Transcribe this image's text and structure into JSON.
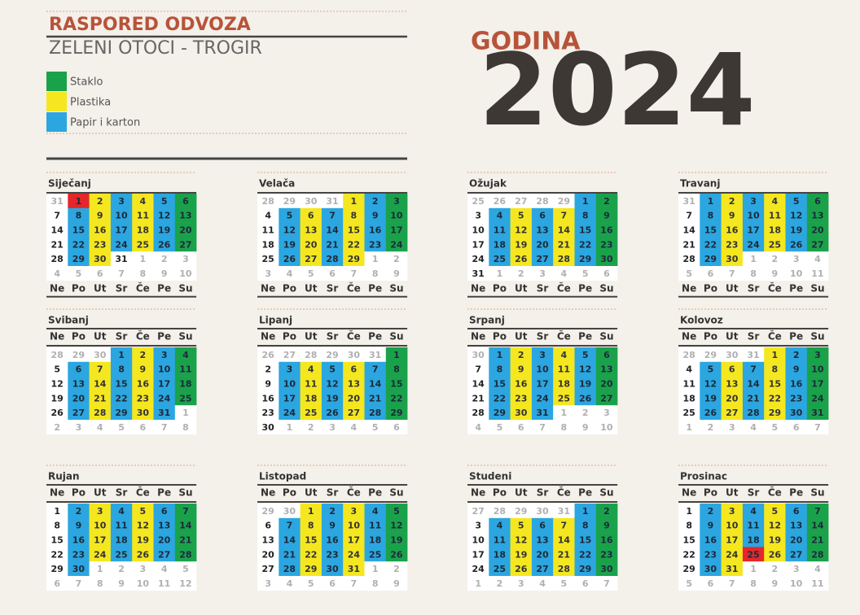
{
  "header": {
    "title": "RASPORED ODVOZA",
    "subtitle": "ZELENI OTOCI - TROGIR",
    "year_label": "GODINA",
    "year": "2024"
  },
  "legend": [
    {
      "label": "Staklo",
      "color": "#1aa24b"
    },
    {
      "label": "Plastika",
      "color": "#f5e71f"
    },
    {
      "label": "Papir i karton",
      "color": "#2ba6e0"
    }
  ],
  "palette": {
    "g": "#1aa24b",
    "y": "#f5e71f",
    "b": "#2ba6e0",
    "r": "#e5262a",
    "w": "#ffffff",
    "o": "#ffffff"
  },
  "weekdays": [
    "Ne",
    "Po",
    "Ut",
    "Sr",
    "Če",
    "Pe",
    "Su"
  ],
  "months": [
    {
      "name": "Siječanj",
      "weeks": [
        [
          31,
          1,
          2,
          3,
          4,
          5,
          6
        ],
        [
          7,
          8,
          9,
          10,
          11,
          12,
          13
        ],
        [
          14,
          15,
          16,
          17,
          18,
          19,
          20
        ],
        [
          21,
          22,
          23,
          24,
          25,
          26,
          27
        ],
        [
          28,
          29,
          30,
          31,
          1,
          2,
          3
        ],
        [
          4,
          5,
          6,
          7,
          8,
          9,
          10
        ]
      ],
      "colors": [
        "orybybg",
        "wbybybg",
        "wbybybg",
        "wbybybg",
        "wbywooo",
        "ooooooo"
      ]
    },
    {
      "name": "Velača",
      "weeks": [
        [
          28,
          29,
          30,
          31,
          1,
          2,
          3
        ],
        [
          4,
          5,
          6,
          7,
          8,
          9,
          10
        ],
        [
          11,
          12,
          13,
          14,
          15,
          16,
          17
        ],
        [
          18,
          19,
          20,
          21,
          22,
          23,
          24
        ],
        [
          25,
          26,
          27,
          28,
          29,
          1,
          2
        ],
        [
          3,
          4,
          5,
          6,
          7,
          8,
          9
        ]
      ],
      "colors": [
        "ooooybg",
        "wbybybg",
        "wbybybg",
        "wbybybg",
        "wbybyoo",
        "ooooooo"
      ]
    },
    {
      "name": "Ožujak",
      "weeks": [
        [
          25,
          26,
          27,
          28,
          29,
          1,
          2
        ],
        [
          3,
          4,
          5,
          6,
          7,
          8,
          9
        ],
        [
          10,
          11,
          12,
          13,
          14,
          15,
          16
        ],
        [
          17,
          18,
          19,
          20,
          21,
          22,
          23
        ],
        [
          24,
          25,
          26,
          27,
          28,
          29,
          30
        ],
        [
          31,
          1,
          2,
          3,
          4,
          5,
          6
        ]
      ],
      "colors": [
        "ooooobg",
        "wbybybg",
        "wbybybg",
        "wbybybg",
        "wbybybg",
        "woooooo"
      ]
    },
    {
      "name": "Travanj",
      "weeks": [
        [
          31,
          1,
          2,
          3,
          4,
          5,
          6
        ],
        [
          7,
          8,
          9,
          10,
          11,
          12,
          13
        ],
        [
          14,
          15,
          16,
          17,
          18,
          19,
          20
        ],
        [
          21,
          22,
          23,
          24,
          25,
          26,
          27
        ],
        [
          28,
          29,
          30,
          1,
          2,
          3,
          4
        ],
        [
          5,
          6,
          7,
          8,
          9,
          10,
          11
        ]
      ],
      "colors": [
        "obybybg",
        "wbybybg",
        "wbybybg",
        "wbybybg",
        "wbyoooo",
        "ooooooo"
      ]
    },
    {
      "name": "Svibanj",
      "weeks": [
        [
          28,
          29,
          30,
          1,
          2,
          3,
          4
        ],
        [
          5,
          6,
          7,
          8,
          9,
          10,
          11
        ],
        [
          12,
          13,
          14,
          15,
          16,
          17,
          18
        ],
        [
          19,
          20,
          21,
          22,
          23,
          24,
          25
        ],
        [
          26,
          27,
          28,
          29,
          30,
          31,
          1
        ],
        [
          2,
          3,
          4,
          5,
          6,
          7,
          8
        ]
      ],
      "colors": [
        "ooobybg",
        "wbybybg",
        "wbybybg",
        "wbybybg",
        "wbybybo",
        "ooooooo"
      ]
    },
    {
      "name": "Lipanj",
      "weeks": [
        [
          26,
          27,
          28,
          29,
          30,
          31,
          1
        ],
        [
          2,
          3,
          4,
          5,
          6,
          7,
          8
        ],
        [
          9,
          10,
          11,
          12,
          13,
          14,
          15
        ],
        [
          16,
          17,
          18,
          19,
          20,
          21,
          22
        ],
        [
          23,
          24,
          25,
          26,
          27,
          28,
          29
        ],
        [
          30,
          1,
          2,
          3,
          4,
          5,
          6
        ]
      ],
      "colors": [
        "oooooog",
        "wbybybg",
        "wbybybg",
        "wbybybg",
        "wbybybg",
        "woooooo"
      ]
    },
    {
      "name": "Srpanj",
      "weeks": [
        [
          30,
          1,
          2,
          3,
          4,
          5,
          6
        ],
        [
          7,
          8,
          9,
          10,
          11,
          12,
          13
        ],
        [
          14,
          15,
          16,
          17,
          18,
          19,
          20
        ],
        [
          21,
          22,
          23,
          24,
          25,
          26,
          27
        ],
        [
          28,
          29,
          30,
          31,
          1,
          2,
          3
        ],
        [
          4,
          5,
          6,
          7,
          8,
          9,
          10
        ]
      ],
      "colors": [
        "obybybg",
        "wbybybg",
        "wbybybg",
        "wbybybg",
        "wbybooo",
        "ooooooo"
      ]
    },
    {
      "name": "Kolovoz",
      "weeks": [
        [
          28,
          29,
          30,
          31,
          1,
          2,
          3
        ],
        [
          4,
          5,
          6,
          7,
          8,
          9,
          10
        ],
        [
          11,
          12,
          13,
          14,
          15,
          16,
          17
        ],
        [
          18,
          19,
          20,
          21,
          22,
          23,
          24
        ],
        [
          25,
          26,
          27,
          28,
          29,
          30,
          31
        ],
        [
          1,
          2,
          3,
          4,
          5,
          6,
          7
        ]
      ],
      "colors": [
        "ooooybg",
        "wbybybg",
        "wbybybg",
        "wbybybg",
        "wbybybg",
        "ooooooo"
      ]
    },
    {
      "name": "Rujan",
      "weeks": [
        [
          1,
          2,
          3,
          4,
          5,
          6,
          7
        ],
        [
          8,
          9,
          10,
          11,
          12,
          13,
          14
        ],
        [
          15,
          16,
          17,
          18,
          19,
          20,
          21
        ],
        [
          22,
          23,
          24,
          25,
          26,
          27,
          28
        ],
        [
          29,
          30,
          1,
          2,
          3,
          4,
          5
        ],
        [
          6,
          7,
          8,
          9,
          10,
          11,
          12
        ]
      ],
      "colors": [
        "wbybybg",
        "wbybybg",
        "wbybybg",
        "wbybybg",
        "wbooooo",
        "ooooooo"
      ]
    },
    {
      "name": "Listopad",
      "weeks": [
        [
          29,
          30,
          1,
          2,
          3,
          4,
          5
        ],
        [
          6,
          7,
          8,
          9,
          10,
          11,
          12
        ],
        [
          13,
          14,
          15,
          16,
          17,
          18,
          19
        ],
        [
          20,
          21,
          22,
          23,
          24,
          25,
          26
        ],
        [
          27,
          28,
          29,
          30,
          31,
          1,
          2
        ],
        [
          3,
          4,
          5,
          6,
          7,
          8,
          9
        ]
      ],
      "colors": [
        "ooybybg",
        "wbybybg",
        "wbybybg",
        "wbybybg",
        "wbybyoo",
        "ooooooo"
      ]
    },
    {
      "name": "Studeni",
      "weeks": [
        [
          27,
          28,
          29,
          30,
          31,
          1,
          2
        ],
        [
          3,
          4,
          5,
          6,
          7,
          8,
          9
        ],
        [
          10,
          11,
          12,
          13,
          14,
          15,
          16
        ],
        [
          17,
          18,
          19,
          20,
          21,
          22,
          23
        ],
        [
          24,
          25,
          26,
          27,
          28,
          29,
          30
        ],
        [
          1,
          2,
          3,
          4,
          5,
          6,
          7
        ]
      ],
      "colors": [
        "ooooobg",
        "wbybybg",
        "wbybybg",
        "wbybybg",
        "wbybybg",
        "ooooooo"
      ]
    },
    {
      "name": "Prosinac",
      "weeks": [
        [
          1,
          2,
          3,
          4,
          5,
          6,
          7
        ],
        [
          8,
          9,
          10,
          11,
          12,
          13,
          14
        ],
        [
          15,
          16,
          17,
          18,
          19,
          20,
          21
        ],
        [
          22,
          23,
          24,
          25,
          26,
          27,
          28
        ],
        [
          29,
          30,
          31,
          1,
          2,
          3,
          4
        ],
        [
          5,
          6,
          7,
          8,
          9,
          10,
          11
        ]
      ],
      "colors": [
        "wbybybg",
        "wbybybg",
        "wbybybg",
        "wbyrybg",
        "wbyoooo",
        "ooooooo"
      ]
    }
  ]
}
